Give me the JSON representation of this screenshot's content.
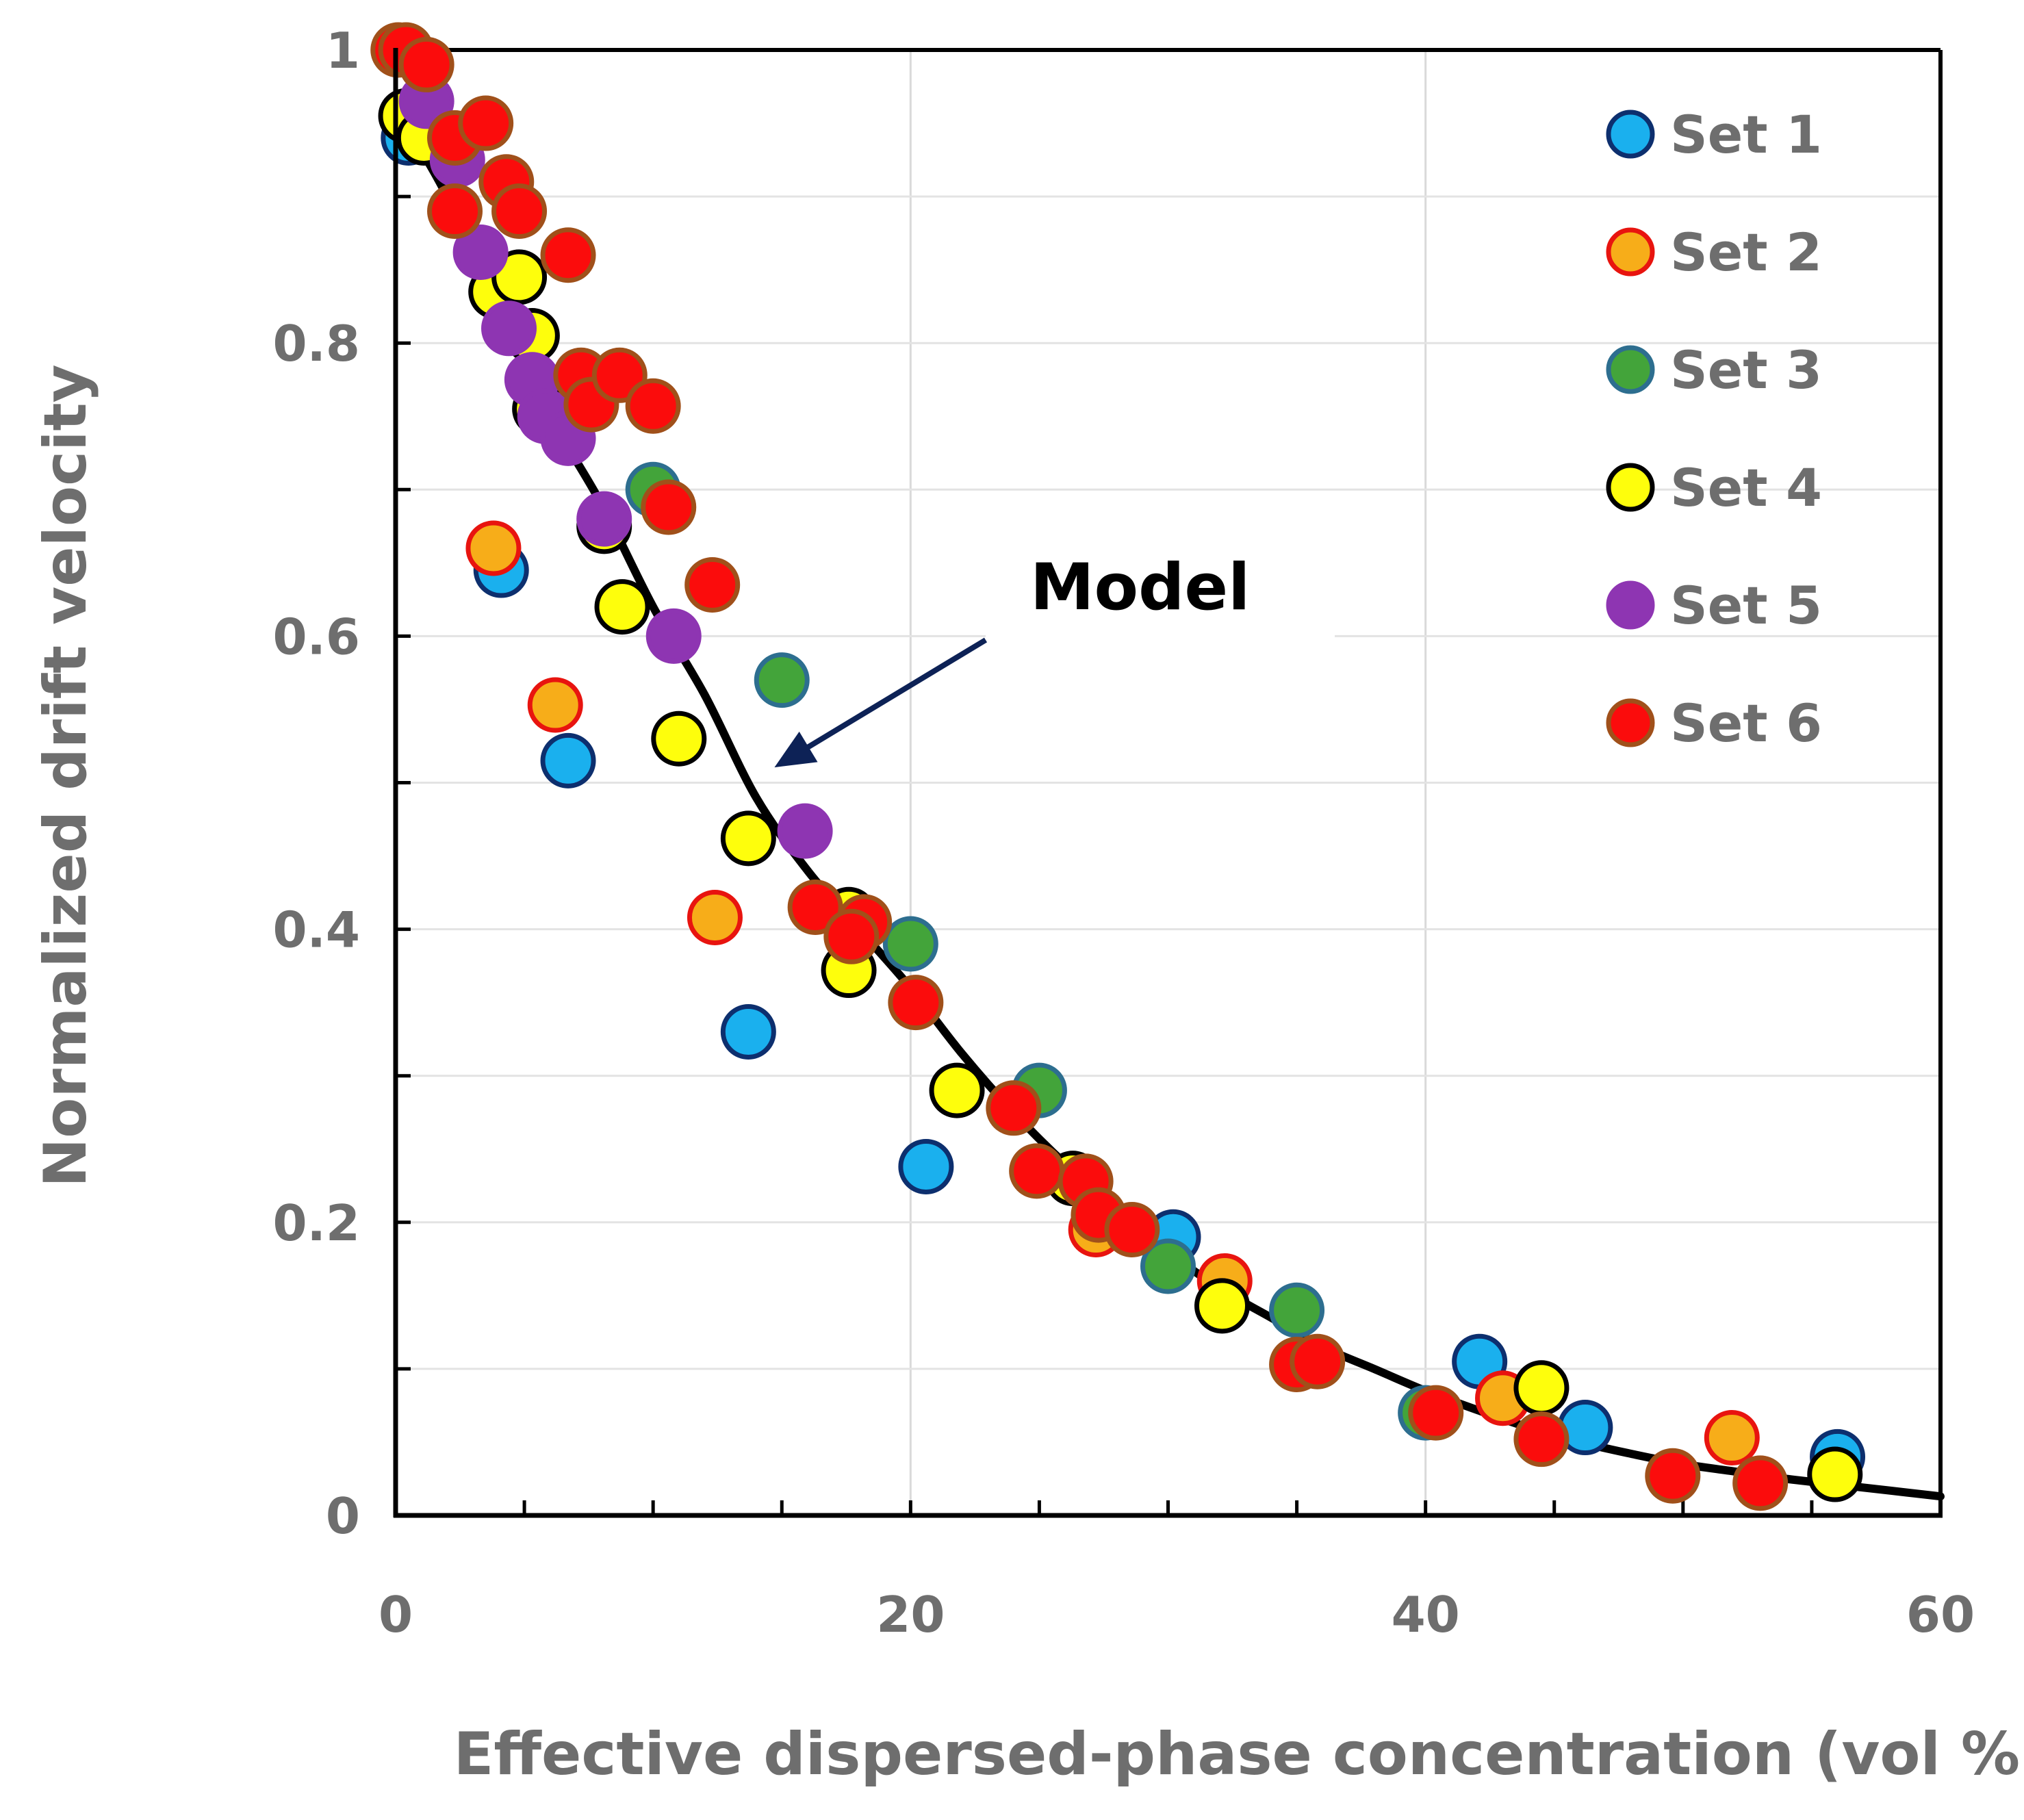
{
  "chart_data": {
    "type": "scatter",
    "title": "",
    "xlabel": "Effective dispersed-phase concentration (vol %)",
    "ylabel": "Normalized drift velocity",
    "xlim": [
      0,
      60
    ],
    "ylim": [
      0,
      1
    ],
    "x_ticks": [
      "0",
      "20",
      "40",
      "60"
    ],
    "y_ticks": [
      "0",
      "0.2",
      "0.4",
      "0.6",
      "0.8",
      "1"
    ],
    "grid": true,
    "legend_position": "top-right",
    "annotation": {
      "text": "Model",
      "points_to": [
        14.5,
        0.51
      ]
    },
    "model": {
      "name": "Model",
      "x": [
        0,
        2,
        4,
        6,
        8,
        10,
        12,
        14,
        16,
        18,
        20,
        22,
        24,
        26,
        28,
        30,
        32,
        34,
        36,
        38,
        40,
        42,
        44,
        46,
        48,
        50,
        52,
        54,
        56,
        58,
        60
      ],
      "y": [
        0.96,
        0.9,
        0.82,
        0.75,
        0.69,
        0.62,
        0.56,
        0.49,
        0.44,
        0.4,
        0.36,
        0.315,
        0.275,
        0.24,
        0.21,
        0.18,
        0.155,
        0.135,
        0.115,
        0.1,
        0.085,
        0.072,
        0.06,
        0.05,
        0.042,
        0.035,
        0.03,
        0.025,
        0.021,
        0.017,
        0.013
      ]
    },
    "series": [
      {
        "name": "Set 1",
        "fill": "#1ab0ee",
        "edge": "#0d2f6e",
        "points": [
          [
            0.5,
            0.94
          ],
          [
            4.1,
            0.645
          ],
          [
            6.7,
            0.515
          ],
          [
            13.7,
            0.33
          ],
          [
            20.6,
            0.238
          ],
          [
            30.2,
            0.19
          ],
          [
            42.1,
            0.105
          ],
          [
            46.2,
            0.06
          ],
          [
            56.0,
            0.04
          ]
        ]
      },
      {
        "name": "Set 2",
        "fill": "#f7ad19",
        "edge": "#e8140f",
        "points": [
          [
            3.8,
            0.66
          ],
          [
            6.2,
            0.553
          ],
          [
            12.4,
            0.408
          ],
          [
            27.2,
            0.195
          ],
          [
            32.2,
            0.16
          ],
          [
            43.0,
            0.08
          ],
          [
            51.9,
            0.053
          ]
        ]
      },
      {
        "name": "Set 3",
        "fill": "#43a43a",
        "edge": "#2d6e8f",
        "points": [
          [
            10.0,
            0.7
          ],
          [
            15.0,
            0.57
          ],
          [
            20.0,
            0.39
          ],
          [
            25.0,
            0.29
          ],
          [
            30.0,
            0.17
          ],
          [
            35.0,
            0.14
          ],
          [
            40.0,
            0.07
          ]
        ]
      },
      {
        "name": "Set 4",
        "fill": "#fefe0c",
        "edge": "#000000",
        "points": [
          [
            0.4,
            0.955
          ],
          [
            1.1,
            0.94
          ],
          [
            3.9,
            0.835
          ],
          [
            4.8,
            0.845
          ],
          [
            5.3,
            0.805
          ],
          [
            5.6,
            0.755
          ],
          [
            8.1,
            0.675
          ],
          [
            8.8,
            0.62
          ],
          [
            11.0,
            0.53
          ],
          [
            13.7,
            0.462
          ],
          [
            17.6,
            0.41
          ],
          [
            17.6,
            0.372
          ],
          [
            21.8,
            0.29
          ],
          [
            26.3,
            0.23
          ],
          [
            32.1,
            0.143
          ],
          [
            44.5,
            0.087
          ],
          [
            55.9,
            0.028
          ]
        ]
      },
      {
        "name": "Set 5",
        "fill": "#8e35b2",
        "edge": "#8e35b2",
        "points": [
          [
            1.2,
            0.965
          ],
          [
            2.4,
            0.925
          ],
          [
            3.3,
            0.862
          ],
          [
            4.4,
            0.81
          ],
          [
            5.3,
            0.775
          ],
          [
            5.8,
            0.75
          ],
          [
            6.7,
            0.735
          ],
          [
            8.1,
            0.68
          ],
          [
            10.8,
            0.6
          ],
          [
            15.9,
            0.467
          ]
        ]
      },
      {
        "name": "Set 6",
        "fill": "#fb0c0c",
        "edge": "#a0501a",
        "points": [
          [
            0.1,
            1.0
          ],
          [
            0.4,
            1.0
          ],
          [
            1.2,
            0.99
          ],
          [
            2.3,
            0.94
          ],
          [
            3.5,
            0.95
          ],
          [
            2.3,
            0.89
          ],
          [
            4.3,
            0.91
          ],
          [
            4.8,
            0.89
          ],
          [
            6.7,
            0.86
          ],
          [
            7.2,
            0.778
          ],
          [
            7.6,
            0.758
          ],
          [
            8.7,
            0.778
          ],
          [
            10.0,
            0.757
          ],
          [
            10.6,
            0.688
          ],
          [
            12.3,
            0.635
          ],
          [
            16.3,
            0.415
          ],
          [
            18.2,
            0.405
          ],
          [
            17.7,
            0.395
          ],
          [
            20.2,
            0.35
          ],
          [
            24.0,
            0.278
          ],
          [
            24.9,
            0.235
          ],
          [
            26.8,
            0.228
          ],
          [
            27.3,
            0.205
          ],
          [
            28.6,
            0.195
          ],
          [
            35.0,
            0.103
          ],
          [
            35.8,
            0.105
          ],
          [
            40.4,
            0.07
          ],
          [
            44.5,
            0.052
          ],
          [
            49.6,
            0.027
          ],
          [
            53.0,
            0.022
          ]
        ]
      }
    ]
  }
}
